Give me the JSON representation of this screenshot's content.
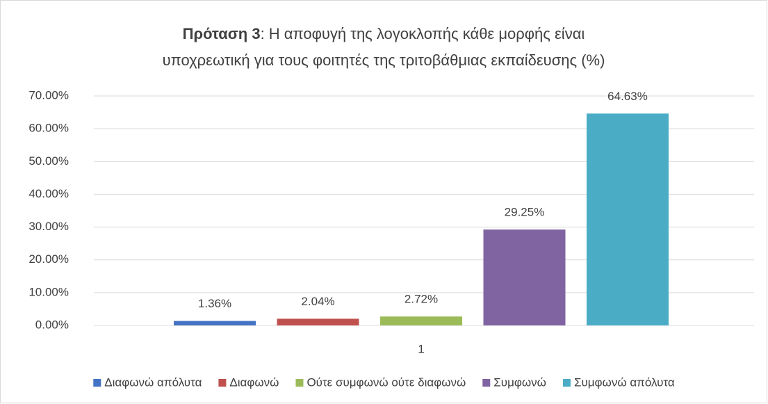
{
  "chart_data": {
    "type": "bar",
    "title": {
      "bold": "Πρόταση 3",
      "lines": [
        ": Η αποφυγή της λογοκλοπής κάθε μορφής είναι",
        "υποχρεωτική για τους φοιτητές της τριτοβάθμιας εκπαίδευσης (%)"
      ]
    },
    "categories": [
      "1"
    ],
    "series": [
      {
        "name": "Διαφωνώ απόλυτα",
        "color": "#4472c4",
        "values": [
          1.36
        ],
        "value_labels": [
          "1.36%"
        ]
      },
      {
        "name": "Διαφωνώ",
        "color": "#c0504d",
        "values": [
          2.04
        ],
        "value_labels": [
          "2.04%"
        ]
      },
      {
        "name": "Ούτε συμφωνώ ούτε διαφωνώ",
        "color": "#9bbb59",
        "values": [
          2.72
        ],
        "value_labels": [
          "2.72%"
        ]
      },
      {
        "name": "Συμφωνώ",
        "color": "#8064a2",
        "values": [
          29.25
        ],
        "value_labels": [
          "29.25%"
        ]
      },
      {
        "name": "Συμφωνώ απόλυτα",
        "color": "#4bacc6",
        "values": [
          64.63
        ],
        "value_labels": [
          "64.63%"
        ]
      }
    ],
    "ylim": [
      0,
      70
    ],
    "yticks": [
      {
        "value": 0,
        "label": "0.00%"
      },
      {
        "value": 10,
        "label": "10.00%"
      },
      {
        "value": 20,
        "label": "20.00%"
      },
      {
        "value": 30,
        "label": "30.00%"
      },
      {
        "value": 40,
        "label": "40.00%"
      },
      {
        "value": 50,
        "label": "50.00%"
      },
      {
        "value": 60,
        "label": "60.00%"
      },
      {
        "value": 70,
        "label": "70.00%"
      }
    ],
    "grid": true,
    "legend": "bottom"
  }
}
